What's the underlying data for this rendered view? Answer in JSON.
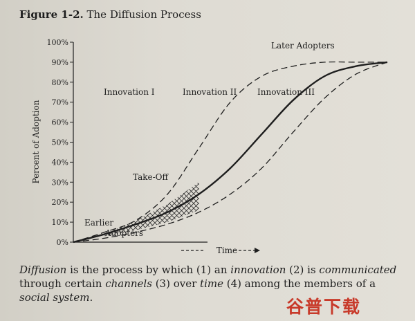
{
  "figure": {
    "number": "Figure 1-2.",
    "title": "The Diffusion Process"
  },
  "chart_data": {
    "type": "line",
    "ylabel": "Percent of Adoption",
    "xlabel": "Time",
    "ylim": [
      0,
      100
    ],
    "y_ticks": [
      "0%",
      "10%",
      "20%",
      "30%",
      "40%",
      "50%",
      "60%",
      "70%",
      "80%",
      "90%",
      "100%"
    ],
    "grid": false,
    "x": [
      0,
      10,
      20,
      30,
      40,
      50,
      60,
      70,
      80,
      90,
      100
    ],
    "series": [
      {
        "name": "Innovation I",
        "style": "dashed",
        "values": [
          0,
          5,
          11,
          24,
          47,
          70,
          83,
          88,
          90,
          90,
          90
        ]
      },
      {
        "name": "Innovation II",
        "style": "solid",
        "values": [
          0,
          4,
          9,
          15,
          24,
          37,
          54,
          71,
          83,
          88,
          90
        ]
      },
      {
        "name": "Innovation III",
        "style": "dashed",
        "values": [
          0,
          2,
          5,
          9,
          15,
          24,
          37,
          55,
          72,
          84,
          90
        ]
      }
    ],
    "annotations": [
      "Later Adopters",
      "Take-Off",
      "Earlier",
      "Adopters"
    ]
  },
  "caption": {
    "t1": "Diffusion",
    "t2": " is the process by which (1) an ",
    "t3": "innovation",
    "t4": " (2) is ",
    "t5": "communicated",
    "t6": " through certain ",
    "t7": "channels",
    "t8": " (3) over ",
    "t9": "time",
    "t10": " (4) among the members of a ",
    "t11": "social system",
    "t12": "."
  },
  "watermark": "谷普下载"
}
